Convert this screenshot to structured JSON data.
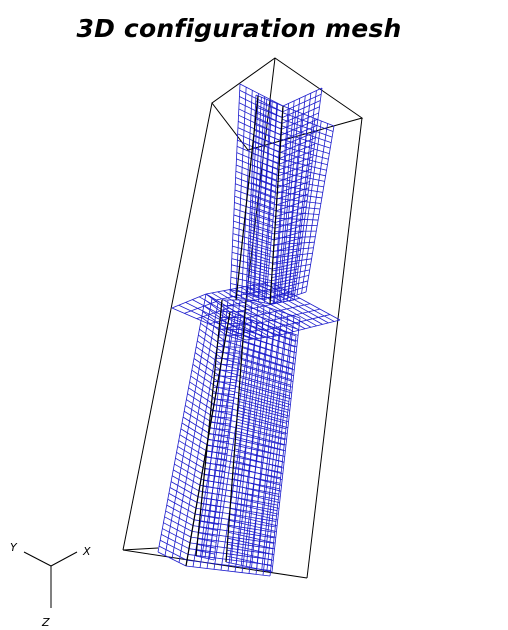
{
  "title": "3D configuration mesh",
  "axes": {
    "y": "Y",
    "x": "X",
    "z": "Z"
  },
  "colors": {
    "mesh": "#1c1ccc",
    "outline": "#000000",
    "background": "#ffffff"
  }
}
